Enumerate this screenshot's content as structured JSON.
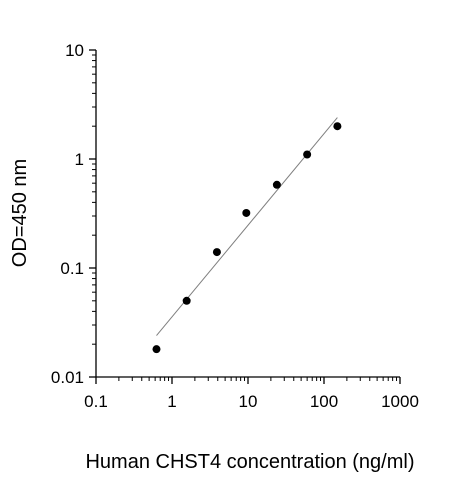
{
  "chart_data": {
    "type": "scatter",
    "title": "",
    "xlabel": "Human CHST4 concentration (ng/ml)",
    "ylabel": "OD=450 nm",
    "xscale": "log",
    "yscale": "log",
    "xlim": [
      0.1,
      1000
    ],
    "ylim": [
      0.01,
      10
    ],
    "x_tick_labels": [
      "0.1",
      "1",
      "10",
      "100",
      "1000"
    ],
    "y_tick_labels": [
      "0.01",
      "0.1",
      "1",
      "10"
    ],
    "grid": false,
    "legend": "none",
    "series": [
      {
        "x": [
          0.625,
          1.56,
          3.9,
          9.5,
          24,
          60,
          150
        ],
        "y": [
          0.018,
          0.05,
          0.14,
          0.32,
          0.58,
          1.1,
          2.0
        ]
      }
    ],
    "fit_line": {
      "x": [
        0.625,
        150
      ],
      "y": [
        0.024,
        2.4
      ]
    },
    "colors": {
      "points": "#000000",
      "fit_line": "#7f7f7f",
      "axes": "#000000"
    }
  }
}
